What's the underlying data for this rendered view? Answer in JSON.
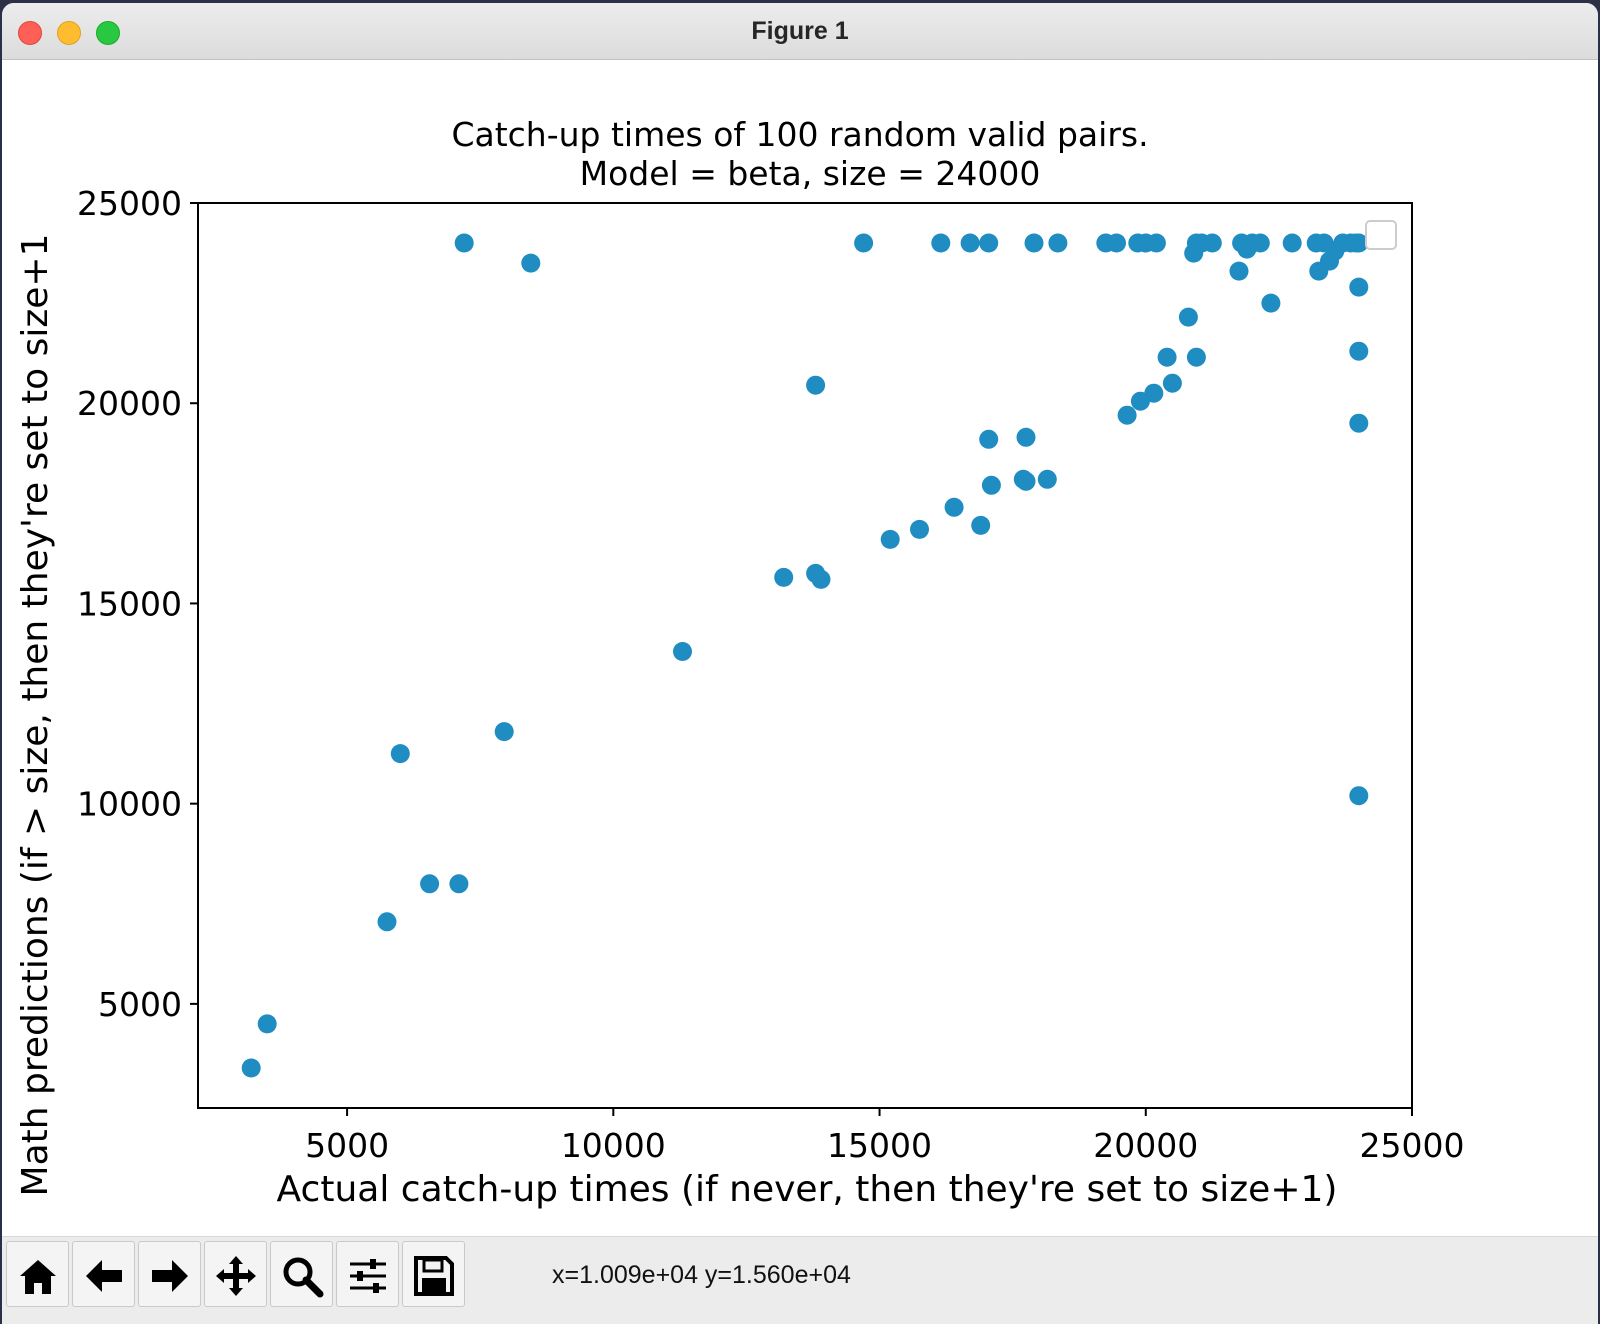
{
  "window": {
    "title": "Figure 1"
  },
  "toolbar": {
    "buttons": [
      {
        "icon": "home-icon",
        "action": "home"
      },
      {
        "icon": "back-arrow-icon",
        "action": "back"
      },
      {
        "icon": "forward-arrow-icon",
        "action": "forward"
      },
      {
        "icon": "pan-move-icon",
        "action": "pan"
      },
      {
        "icon": "zoom-magnifier-icon",
        "action": "zoom"
      },
      {
        "icon": "sliders-configure-icon",
        "action": "configure-subplots"
      },
      {
        "icon": "save-floppy-icon",
        "action": "save"
      }
    ],
    "coordinates": "x=1.009e+04 y=1.560e+04"
  },
  "chart_data": {
    "type": "scatter",
    "title": "Catch-up times of 100 random valid pairs.",
    "subtitle": "Model = beta, size = 24000",
    "xlabel": "Actual catch-up times (if never, then they're set to size+1)",
    "ylabel": "Math predictions (if > size, then they're set to size+1",
    "xlim": [
      2200,
      25000
    ],
    "ylim": [
      2400,
      25000
    ],
    "xticks": [
      5000,
      10000,
      15000,
      20000,
      25000
    ],
    "yticks": [
      5000,
      10000,
      15000,
      20000,
      25000
    ],
    "marker_color": "#1f8dc2",
    "grid": false,
    "legend": "top-right, empty",
    "points": [
      [
        3200,
        3400
      ],
      [
        3500,
        4500
      ],
      [
        5750,
        7050
      ],
      [
        6000,
        11250
      ],
      [
        6550,
        8000
      ],
      [
        7100,
        8000
      ],
      [
        7200,
        24001
      ],
      [
        7950,
        11800
      ],
      [
        8450,
        23500
      ],
      [
        11300,
        13800
      ],
      [
        13200,
        15650
      ],
      [
        13800,
        15750
      ],
      [
        13900,
        15600
      ],
      [
        13800,
        20450
      ],
      [
        14700,
        24001
      ],
      [
        15200,
        16600
      ],
      [
        15750,
        16850
      ],
      [
        16150,
        24001
      ],
      [
        16400,
        17400
      ],
      [
        16700,
        24001
      ],
      [
        16900,
        16950
      ],
      [
        17050,
        24001
      ],
      [
        17050,
        19100
      ],
      [
        17100,
        17950
      ],
      [
        17700,
        18100
      ],
      [
        17750,
        19150
      ],
      [
        17750,
        18050
      ],
      [
        17900,
        24001
      ],
      [
        18150,
        18100
      ],
      [
        18350,
        24001
      ],
      [
        19250,
        24001
      ],
      [
        19450,
        24001
      ],
      [
        19650,
        19700
      ],
      [
        19850,
        24001
      ],
      [
        19900,
        20050
      ],
      [
        20000,
        24001
      ],
      [
        20150,
        20250
      ],
      [
        20200,
        24001
      ],
      [
        20400,
        21150
      ],
      [
        20500,
        20500
      ],
      [
        20800,
        22150
      ],
      [
        20900,
        23750
      ],
      [
        20950,
        21150
      ],
      [
        20950,
        24001
      ],
      [
        21050,
        24001
      ],
      [
        21250,
        24001
      ],
      [
        21750,
        23300
      ],
      [
        21800,
        24001
      ],
      [
        21900,
        23850
      ],
      [
        22000,
        24001
      ],
      [
        22150,
        24001
      ],
      [
        22350,
        22500
      ],
      [
        22750,
        24001
      ],
      [
        23200,
        24001
      ],
      [
        23250,
        23300
      ],
      [
        23350,
        24001
      ],
      [
        23450,
        23550
      ],
      [
        23550,
        23800
      ],
      [
        23700,
        24001
      ],
      [
        23850,
        24001
      ],
      [
        23950,
        24001
      ],
      [
        24001,
        24001
      ],
      [
        24001,
        22900
      ],
      [
        24001,
        21300
      ],
      [
        24001,
        19500
      ],
      [
        24001,
        10200
      ]
    ]
  }
}
